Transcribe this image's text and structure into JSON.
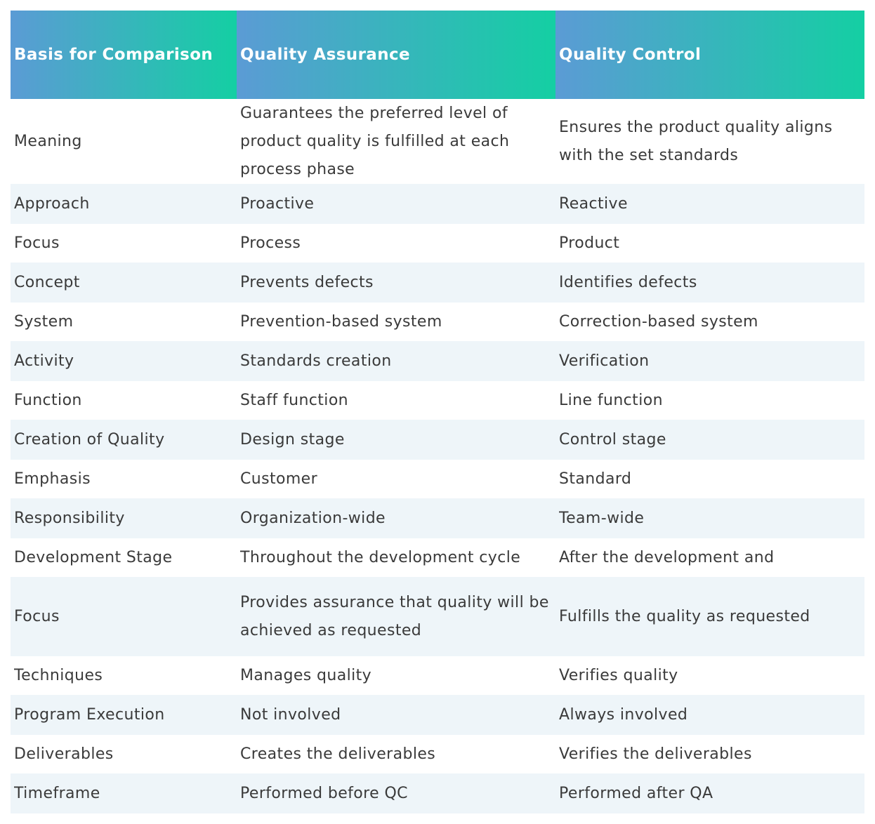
{
  "table": {
    "header": [
      "Basis for Comparison",
      "Quality Assurance",
      "Quality Control"
    ],
    "rows": [
      [
        "Meaning",
        "Guarantees the preferred level of product quality is fulfilled at each process phase",
        "Ensures the product quality aligns with the set standards"
      ],
      [
        "Approach",
        "Proactive",
        "Reactive"
      ],
      [
        "Focus",
        "Process",
        "Product"
      ],
      [
        "Concept",
        "Prevents defects",
        "Identifies defects"
      ],
      [
        "System",
        "Prevention-based system",
        "Correction-based system"
      ],
      [
        "Activity",
        "Standards creation",
        "Verification"
      ],
      [
        "Function",
        "Staff function",
        "Line function"
      ],
      [
        "Creation of Quality",
        "Design stage",
        "Control stage"
      ],
      [
        "Emphasis",
        "Customer",
        "Standard"
      ],
      [
        "Responsibility",
        "Organization-wide",
        "Team-wide"
      ],
      [
        "Development Stage",
        "Throughout the development cycle",
        "After the development and"
      ],
      [
        "Focus",
        "Provides assurance that quality will be achieved as requested",
        "Fulfills the quality as requested"
      ],
      [
        "Techniques",
        "Manages quality",
        "Verifies quality"
      ],
      [
        "Program Execution",
        "Not involved",
        "Always involved"
      ],
      [
        "Deliverables",
        "Creates the deliverables",
        "Verifies the deliverables"
      ],
      [
        "Timeframe",
        "Performed before QC",
        "Performed after QA"
      ]
    ]
  }
}
